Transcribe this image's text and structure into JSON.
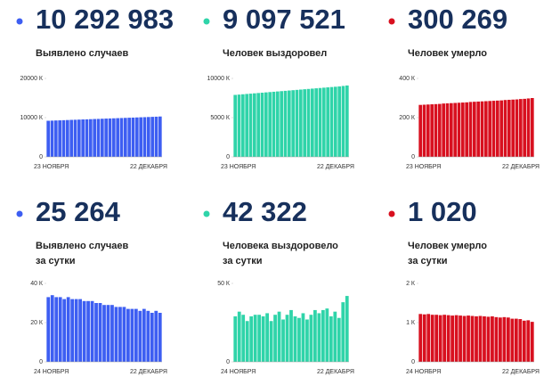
{
  "chart_data": [
    {
      "type": "bar",
      "title": "10 292 983",
      "subtitle": [
        "Выявлено случаев"
      ],
      "color": "#3d5ef2",
      "categories": [
        "23 НОЯБРЯ",
        null,
        null,
        null,
        null,
        null,
        null,
        null,
        null,
        null,
        null,
        null,
        null,
        null,
        null,
        null,
        null,
        null,
        null,
        null,
        null,
        null,
        null,
        null,
        null,
        null,
        null,
        null,
        null,
        "22 ДЕКАБРЯ"
      ],
      "values": [
        9200,
        9240,
        9280,
        9310,
        9350,
        9390,
        9430,
        9460,
        9500,
        9540,
        9570,
        9610,
        9650,
        9680,
        9720,
        9760,
        9790,
        9830,
        9870,
        9900,
        9940,
        9980,
        10010,
        10050,
        10090,
        10120,
        10160,
        10200,
        10240,
        10290
      ],
      "ylim": [
        0,
        20000
      ],
      "yticks": [
        0,
        {
          "value": 10000,
          "label": "10000 К"
        },
        {
          "value": 20000,
          "label": "20000 К"
        }
      ]
    },
    {
      "type": "bar",
      "title": "9 097 521",
      "subtitle": [
        "Человек выздоровел"
      ],
      "color": "#2fd4a9",
      "categories": [
        "23 НОЯБРЯ",
        null,
        null,
        null,
        null,
        null,
        null,
        null,
        null,
        null,
        null,
        null,
        null,
        null,
        null,
        null,
        null,
        null,
        null,
        null,
        null,
        null,
        null,
        null,
        null,
        null,
        null,
        null,
        null,
        "22 ДЕКАБРЯ"
      ],
      "values": [
        7900,
        7940,
        7980,
        8020,
        8060,
        8100,
        8140,
        8180,
        8220,
        8260,
        8300,
        8340,
        8380,
        8420,
        8460,
        8500,
        8540,
        8580,
        8620,
        8660,
        8700,
        8740,
        8780,
        8820,
        8860,
        8900,
        8940,
        8980,
        9040,
        9100
      ],
      "ylim": [
        0,
        10000
      ],
      "yticks": [
        0,
        {
          "value": 5000,
          "label": "5000 К"
        },
        {
          "value": 10000,
          "label": "10000 К"
        }
      ]
    },
    {
      "type": "bar",
      "title": "300 269",
      "subtitle": [
        "Человек умерло"
      ],
      "color": "#d8101f",
      "categories": [
        "23 НОЯБРЯ",
        null,
        null,
        null,
        null,
        null,
        null,
        null,
        null,
        null,
        null,
        null,
        null,
        null,
        null,
        null,
        null,
        null,
        null,
        null,
        null,
        null,
        null,
        null,
        null,
        null,
        null,
        null,
        null,
        "22 ДЕКАБРЯ"
      ],
      "values": [
        265,
        266,
        267,
        268,
        269,
        270,
        272,
        273,
        274,
        275,
        276,
        277,
        278,
        280,
        281,
        282,
        283,
        284,
        285,
        286,
        287,
        288,
        290,
        291,
        292,
        293,
        295,
        296,
        298,
        300
      ],
      "ylim": [
        0,
        400
      ],
      "yticks": [
        0,
        {
          "value": 200,
          "label": "200 К"
        },
        {
          "value": 400,
          "label": "400 К"
        }
      ]
    },
    {
      "type": "bar",
      "title": "25 264",
      "subtitle": [
        "Выявлено случаев",
        "за сутки"
      ],
      "color": "#3d5ef2",
      "categories": [
        "24 НОЯБРЯ",
        null,
        null,
        null,
        null,
        null,
        null,
        null,
        null,
        null,
        null,
        null,
        null,
        null,
        null,
        null,
        null,
        null,
        null,
        null,
        null,
        null,
        null,
        null,
        null,
        null,
        null,
        null,
        "22 ДЕКАБРЯ"
      ],
      "values": [
        33,
        34,
        33,
        33,
        32,
        33,
        32,
        32,
        32,
        31,
        31,
        31,
        30,
        30,
        29,
        29,
        29,
        28,
        28,
        28,
        27,
        27,
        27,
        26,
        27,
        26,
        25,
        26,
        25
      ],
      "ylim": [
        0,
        40
      ],
      "yticks": [
        0,
        {
          "value": 20,
          "label": "20 К"
        },
        {
          "value": 40,
          "label": "40 К"
        }
      ]
    },
    {
      "type": "bar",
      "title": "42 322",
      "subtitle": [
        "Человека выздоровело",
        "за сутки"
      ],
      "color": "#2fd4a9",
      "categories": [
        "24 НОЯБРЯ",
        null,
        null,
        null,
        null,
        null,
        null,
        null,
        null,
        null,
        null,
        null,
        null,
        null,
        null,
        null,
        null,
        null,
        null,
        null,
        null,
        null,
        null,
        null,
        null,
        null,
        null,
        null,
        "22 ДЕКАБРЯ"
      ],
      "values": [
        29,
        32,
        30,
        26,
        29,
        30,
        30,
        29,
        31,
        26,
        30,
        32,
        27,
        30,
        33,
        29,
        28,
        31,
        27,
        30,
        33,
        31,
        33,
        34,
        29,
        32,
        28,
        38,
        42
      ],
      "ylim": [
        0,
        50
      ],
      "yticks": [
        0,
        {
          "value": 50,
          "label": "50 К"
        }
      ]
    },
    {
      "type": "bar",
      "title": "1 020",
      "subtitle": [
        "Человек умерло",
        "за сутки"
      ],
      "color": "#d8101f",
      "categories": [
        "24 НОЯБРЯ",
        null,
        null,
        null,
        null,
        null,
        null,
        null,
        null,
        null,
        null,
        null,
        null,
        null,
        null,
        null,
        null,
        null,
        null,
        null,
        null,
        null,
        null,
        null,
        null,
        null,
        null,
        null,
        "22 ДЕКАБРЯ"
      ],
      "values": [
        1.22,
        1.21,
        1.22,
        1.2,
        1.2,
        1.19,
        1.2,
        1.19,
        1.18,
        1.19,
        1.18,
        1.17,
        1.18,
        1.17,
        1.16,
        1.17,
        1.16,
        1.15,
        1.16,
        1.14,
        1.13,
        1.14,
        1.13,
        1.1,
        1.1,
        1.09,
        1.05,
        1.06,
        1.02
      ],
      "ylim": [
        0,
        2
      ],
      "yticks": [
        0,
        {
          "value": 1,
          "label": "1 К"
        },
        {
          "value": 2,
          "label": "2 К"
        }
      ]
    }
  ]
}
